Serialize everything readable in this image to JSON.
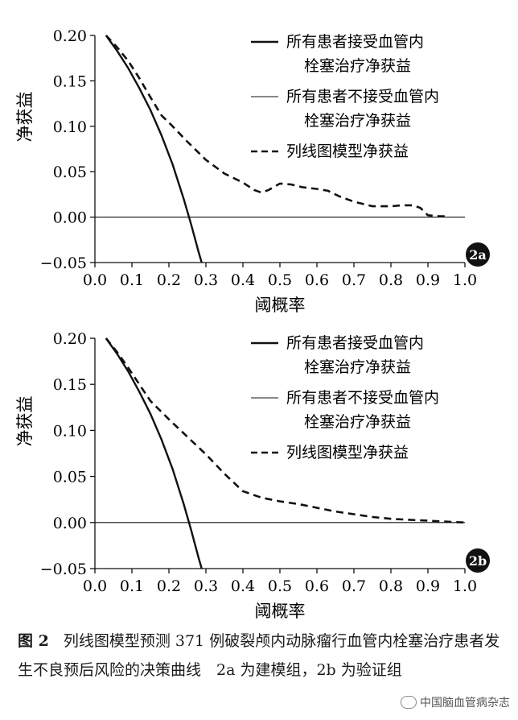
{
  "chart_data": [
    {
      "type": "line",
      "panel_badge": "2a",
      "xlabel": "阈概率",
      "ylabel": "净获益",
      "xlim": [
        0,
        1.0
      ],
      "ylim": [
        -0.05,
        0.2
      ],
      "xticks": [
        "0.0",
        "0.1",
        "0.2",
        "0.3",
        "0.4",
        "0.5",
        "0.6",
        "0.7",
        "0.8",
        "0.9",
        "1.0"
      ],
      "yticks": [
        "0.20",
        "0.15",
        "0.10",
        "0.05",
        "0.00",
        "-0.05"
      ],
      "legend": [
        {
          "line1": "所有患者接受血管内",
          "line2": "栓塞治疗净获益",
          "style": "thick"
        },
        {
          "line1": "所有患者不接受血管内",
          "line2": "栓塞治疗净获益",
          "style": "thin"
        },
        {
          "line1": "列线图模型净获益",
          "line2": "",
          "style": "dashed"
        }
      ],
      "series": [
        {
          "name": "所有患者接受血管内栓塞治疗净获益",
          "style": "thick",
          "x": [
            0.03,
            0.06,
            0.09,
            0.12,
            0.15,
            0.18,
            0.21,
            0.24,
            0.26,
            0.28,
            0.29
          ],
          "y": [
            0.2,
            0.183,
            0.164,
            0.142,
            0.118,
            0.09,
            0.058,
            0.02,
            -0.008,
            -0.038,
            -0.052
          ]
        },
        {
          "name": "所有患者不接受血管内栓塞治疗净获益",
          "style": "thin",
          "x": [
            0.0,
            1.0
          ],
          "y": [
            0.0,
            0.0
          ]
        },
        {
          "name": "列线图模型净获益",
          "style": "dashed",
          "x": [
            0.03,
            0.06,
            0.09,
            0.12,
            0.15,
            0.18,
            0.21,
            0.25,
            0.3,
            0.35,
            0.4,
            0.43,
            0.45,
            0.47,
            0.5,
            0.53,
            0.56,
            0.6,
            0.63,
            0.66,
            0.7,
            0.75,
            0.8,
            0.83,
            0.86,
            0.88,
            0.9,
            0.93,
            0.95
          ],
          "y": [
            0.2,
            0.187,
            0.172,
            0.153,
            0.132,
            0.112,
            0.1,
            0.083,
            0.063,
            0.048,
            0.038,
            0.03,
            0.027,
            0.03,
            0.037,
            0.036,
            0.033,
            0.031,
            0.029,
            0.023,
            0.017,
            0.012,
            0.012,
            0.013,
            0.013,
            0.01,
            0.002,
            0.001,
            0.001
          ]
        }
      ]
    },
    {
      "type": "line",
      "panel_badge": "2b",
      "xlabel": "阈概率",
      "ylabel": "净获益",
      "xlim": [
        0,
        1.0
      ],
      "ylim": [
        -0.05,
        0.2
      ],
      "xticks": [
        "0.0",
        "0.1",
        "0.2",
        "0.3",
        "0.4",
        "0.5",
        "0.6",
        "0.7",
        "0.8",
        "0.9",
        "1.0"
      ],
      "yticks": [
        "0.20",
        "0.15",
        "0.10",
        "0.05",
        "0.00",
        "-0.05"
      ],
      "legend": [
        {
          "line1": "所有患者接受血管内",
          "line2": "栓塞治疗净获益",
          "style": "thick"
        },
        {
          "line1": "所有患者不接受血管内",
          "line2": "栓塞治疗净获益",
          "style": "thin"
        },
        {
          "line1": "列线图模型净获益",
          "line2": "",
          "style": "dashed"
        }
      ],
      "series": [
        {
          "name": "所有患者接受血管内栓塞治疗净获益",
          "style": "thick",
          "x": [
            0.03,
            0.06,
            0.09,
            0.12,
            0.15,
            0.18,
            0.21,
            0.24,
            0.26,
            0.28,
            0.29
          ],
          "y": [
            0.2,
            0.183,
            0.164,
            0.142,
            0.118,
            0.09,
            0.058,
            0.02,
            -0.008,
            -0.038,
            -0.052
          ]
        },
        {
          "name": "所有患者不接受血管内栓塞治疗净获益",
          "style": "thin",
          "x": [
            0.0,
            1.0
          ],
          "y": [
            0.0,
            0.0
          ]
        },
        {
          "name": "列线图模型净获益",
          "style": "dashed",
          "x": [
            0.03,
            0.06,
            0.09,
            0.12,
            0.15,
            0.2,
            0.25,
            0.3,
            0.35,
            0.4,
            0.45,
            0.5,
            0.55,
            0.6,
            0.65,
            0.7,
            0.75,
            0.8,
            0.85,
            0.9,
            0.95,
            1.0
          ],
          "y": [
            0.2,
            0.185,
            0.168,
            0.15,
            0.132,
            0.112,
            0.093,
            0.074,
            0.053,
            0.034,
            0.027,
            0.023,
            0.02,
            0.016,
            0.012,
            0.009,
            0.006,
            0.004,
            0.003,
            0.002,
            0.001,
            0.0
          ]
        }
      ]
    }
  ],
  "caption": {
    "fig_no": "图 2",
    "text": "列线图模型预测 371 例破裂颅内动脉瘤行血管内栓塞治疗患者发生不良预后风险的决策曲线　2a 为建模组，2b 为验证组"
  },
  "watermark": "中国脑血管病杂志"
}
